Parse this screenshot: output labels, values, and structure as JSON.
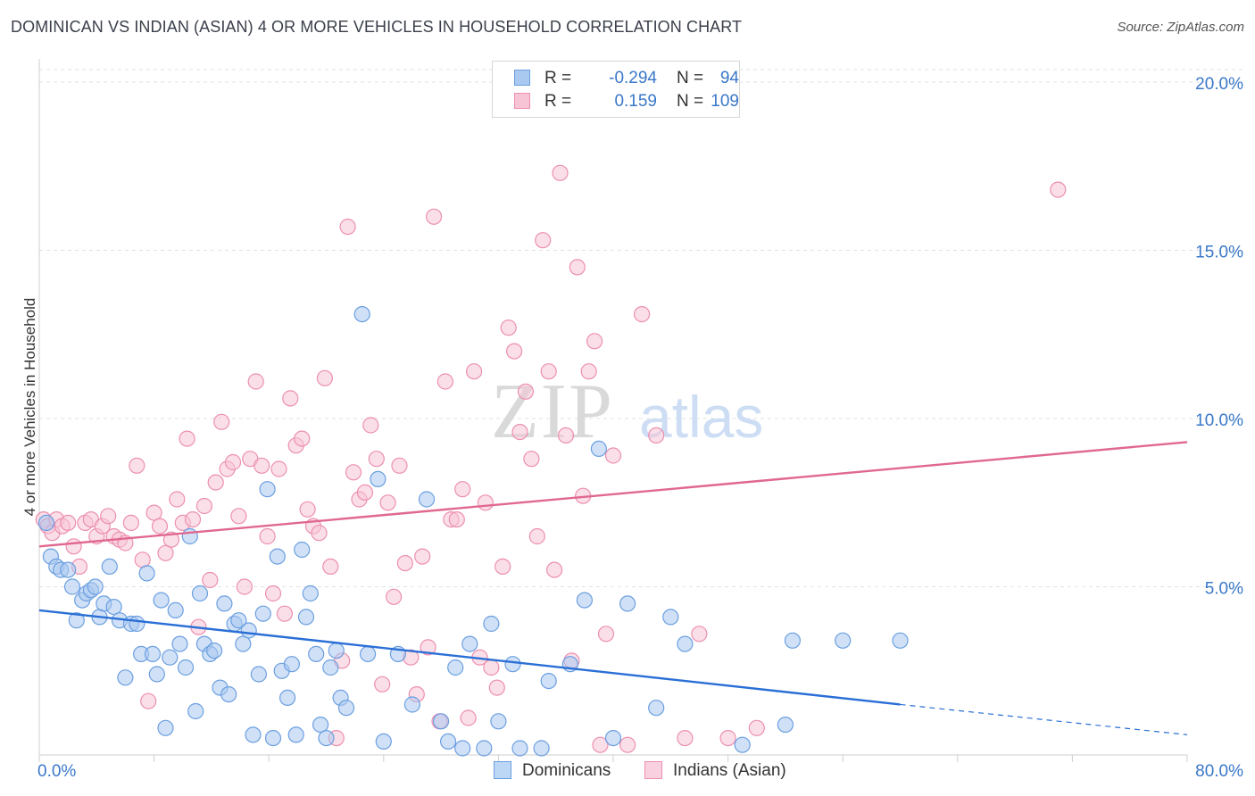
{
  "title": "DOMINICAN VS INDIAN (ASIAN) 4 OR MORE VEHICLES IN HOUSEHOLD CORRELATION CHART",
  "source": "Source: ZipAtlas.com",
  "watermark": {
    "zip": "ZIP",
    "atlas": "atlas"
  },
  "legend": {
    "rows": [
      {
        "r_label": "R =",
        "r_value": "-0.294",
        "n_label": "N =",
        "n_value": "94",
        "color": "#a9c9f0",
        "border": "#6b9fe0"
      },
      {
        "r_label": "R =",
        "r_value": "0.159",
        "n_label": "N =",
        "n_value": "109",
        "color": "#f7c4d6",
        "border": "#ec8fb0"
      }
    ]
  },
  "bottom_legend": [
    {
      "label": "Dominicans",
      "color": "#bcd6f5",
      "border": "#6b9fe0"
    },
    {
      "label": "Indians (Asian)",
      "color": "#f9d0df",
      "border": "#ec8fb0"
    }
  ],
  "chart_data": {
    "type": "scatter",
    "title": "DOMINICAN VS INDIAN (ASIAN) 4 OR MORE VEHICLES IN HOUSEHOLD CORRELATION CHART",
    "xlabel": "",
    "ylabel": "4 or more Vehicles in Household",
    "xlim": [
      0,
      80
    ],
    "ylim": [
      0,
      20
    ],
    "x_tick_labels": [
      "0.0%",
      "80.0%"
    ],
    "y_tick_labels": [
      "5.0%",
      "10.0%",
      "15.0%",
      "20.0%"
    ],
    "y_ticks": [
      5,
      10,
      15,
      20
    ],
    "grid": true,
    "legend_position": "top-center",
    "series": [
      {
        "name": "Dominicans",
        "color": "#6b9fe0",
        "fill": "#a9c9f0",
        "trend": {
          "x0": 0,
          "y0": 4.3,
          "x1": 60,
          "y1": 1.5,
          "dashed_to_x": 80,
          "dashed_to_y": 0.6,
          "color": "#2a6fd6"
        },
        "points": [
          [
            0.5,
            6.9
          ],
          [
            0.8,
            5.9
          ],
          [
            1.2,
            5.6
          ],
          [
            1.5,
            5.5
          ],
          [
            2.0,
            5.5
          ],
          [
            2.3,
            5.0
          ],
          [
            2.6,
            4.0
          ],
          [
            3.0,
            4.6
          ],
          [
            3.3,
            4.8
          ],
          [
            3.6,
            4.9
          ],
          [
            3.9,
            5.0
          ],
          [
            4.2,
            4.1
          ],
          [
            4.5,
            4.5
          ],
          [
            4.9,
            5.6
          ],
          [
            5.2,
            4.4
          ],
          [
            5.6,
            4.0
          ],
          [
            6.0,
            2.3
          ],
          [
            6.4,
            3.9
          ],
          [
            6.8,
            3.9
          ],
          [
            7.1,
            3.0
          ],
          [
            7.5,
            5.4
          ],
          [
            7.9,
            3.0
          ],
          [
            8.2,
            2.4
          ],
          [
            8.5,
            4.6
          ],
          [
            8.8,
            0.8
          ],
          [
            9.1,
            2.9
          ],
          [
            9.5,
            4.3
          ],
          [
            9.8,
            3.3
          ],
          [
            10.2,
            2.6
          ],
          [
            10.5,
            6.5
          ],
          [
            10.9,
            1.3
          ],
          [
            11.2,
            4.8
          ],
          [
            11.5,
            3.3
          ],
          [
            11.9,
            3.0
          ],
          [
            12.2,
            3.1
          ],
          [
            12.6,
            2.0
          ],
          [
            12.9,
            4.5
          ],
          [
            13.2,
            1.8
          ],
          [
            13.6,
            3.9
          ],
          [
            13.9,
            4.0
          ],
          [
            14.2,
            3.3
          ],
          [
            14.6,
            3.7
          ],
          [
            14.9,
            0.6
          ],
          [
            15.3,
            2.4
          ],
          [
            15.6,
            4.2
          ],
          [
            15.9,
            7.9
          ],
          [
            16.3,
            0.5
          ],
          [
            16.6,
            5.9
          ],
          [
            16.9,
            2.5
          ],
          [
            17.3,
            1.7
          ],
          [
            17.6,
            2.7
          ],
          [
            17.9,
            0.6
          ],
          [
            18.3,
            6.1
          ],
          [
            18.6,
            4.1
          ],
          [
            18.9,
            4.8
          ],
          [
            19.3,
            3.0
          ],
          [
            19.6,
            0.9
          ],
          [
            20.0,
            0.5
          ],
          [
            20.3,
            2.6
          ],
          [
            20.7,
            3.1
          ],
          [
            21.0,
            1.7
          ],
          [
            21.4,
            1.4
          ],
          [
            22.5,
            13.1
          ],
          [
            22.9,
            3.0
          ],
          [
            23.6,
            8.2
          ],
          [
            24.0,
            0.4
          ],
          [
            25.0,
            3.0
          ],
          [
            26.0,
            1.5
          ],
          [
            27.0,
            7.6
          ],
          [
            28.0,
            1.0
          ],
          [
            28.5,
            0.4
          ],
          [
            29.0,
            2.6
          ],
          [
            29.5,
            0.2
          ],
          [
            30.0,
            3.3
          ],
          [
            31.0,
            0.2
          ],
          [
            31.5,
            3.9
          ],
          [
            32.0,
            1.0
          ],
          [
            33.0,
            2.7
          ],
          [
            33.5,
            0.2
          ],
          [
            35.0,
            0.2
          ],
          [
            35.5,
            2.2
          ],
          [
            37.0,
            2.7
          ],
          [
            38.0,
            4.6
          ],
          [
            39.0,
            9.1
          ],
          [
            40.0,
            0.5
          ],
          [
            41.0,
            4.5
          ],
          [
            43.0,
            1.4
          ],
          [
            44.0,
            4.1
          ],
          [
            45.0,
            3.3
          ],
          [
            49.0,
            0.3
          ],
          [
            52.0,
            0.9
          ],
          [
            52.5,
            3.4
          ],
          [
            56.0,
            3.4
          ],
          [
            60.0,
            3.4
          ]
        ]
      },
      {
        "name": "Indians (Asian)",
        "color": "#ec8fb0",
        "fill": "#f7c4d6",
        "trend": {
          "x0": 0,
          "y0": 6.2,
          "x1": 80,
          "y1": 9.3,
          "color": "#e0688f"
        },
        "points": [
          [
            0.3,
            7.0
          ],
          [
            0.6,
            6.8
          ],
          [
            0.9,
            6.6
          ],
          [
            1.2,
            7.0
          ],
          [
            1.6,
            6.8
          ],
          [
            2.0,
            6.9
          ],
          [
            2.4,
            6.2
          ],
          [
            2.8,
            5.6
          ],
          [
            3.2,
            6.9
          ],
          [
            3.6,
            7.0
          ],
          [
            4.0,
            6.5
          ],
          [
            4.4,
            6.8
          ],
          [
            4.8,
            7.1
          ],
          [
            5.2,
            6.5
          ],
          [
            5.6,
            6.4
          ],
          [
            6.0,
            6.3
          ],
          [
            6.4,
            6.9
          ],
          [
            6.8,
            8.6
          ],
          [
            7.2,
            5.8
          ],
          [
            7.6,
            1.6
          ],
          [
            8.0,
            7.2
          ],
          [
            8.4,
            6.8
          ],
          [
            8.8,
            6.0
          ],
          [
            9.2,
            6.4
          ],
          [
            9.6,
            7.6
          ],
          [
            10.0,
            6.9
          ],
          [
            10.3,
            9.4
          ],
          [
            10.7,
            7.0
          ],
          [
            11.1,
            3.8
          ],
          [
            11.5,
            7.4
          ],
          [
            11.9,
            5.2
          ],
          [
            12.3,
            8.1
          ],
          [
            12.7,
            9.9
          ],
          [
            13.1,
            8.5
          ],
          [
            13.5,
            8.7
          ],
          [
            13.9,
            7.1
          ],
          [
            14.3,
            5.0
          ],
          [
            14.7,
            8.8
          ],
          [
            15.1,
            11.1
          ],
          [
            15.5,
            8.6
          ],
          [
            15.9,
            6.5
          ],
          [
            16.3,
            4.8
          ],
          [
            16.7,
            8.5
          ],
          [
            17.1,
            4.2
          ],
          [
            17.5,
            10.6
          ],
          [
            17.9,
            9.2
          ],
          [
            18.3,
            9.4
          ],
          [
            18.7,
            7.3
          ],
          [
            19.1,
            6.8
          ],
          [
            19.5,
            6.6
          ],
          [
            19.9,
            11.2
          ],
          [
            20.3,
            5.6
          ],
          [
            20.7,
            0.5
          ],
          [
            21.1,
            2.8
          ],
          [
            21.5,
            15.7
          ],
          [
            21.9,
            8.4
          ],
          [
            22.3,
            7.6
          ],
          [
            22.7,
            7.8
          ],
          [
            23.1,
            9.8
          ],
          [
            23.5,
            8.8
          ],
          [
            23.9,
            2.1
          ],
          [
            24.3,
            7.5
          ],
          [
            24.7,
            4.7
          ],
          [
            25.1,
            8.6
          ],
          [
            25.5,
            5.7
          ],
          [
            25.9,
            2.9
          ],
          [
            26.3,
            1.8
          ],
          [
            26.7,
            5.9
          ],
          [
            27.1,
            3.2
          ],
          [
            27.5,
            16.0
          ],
          [
            27.9,
            1.0
          ],
          [
            28.3,
            11.1
          ],
          [
            28.7,
            7.0
          ],
          [
            29.1,
            7.0
          ],
          [
            29.5,
            7.9
          ],
          [
            29.9,
            1.1
          ],
          [
            30.3,
            11.4
          ],
          [
            30.7,
            2.9
          ],
          [
            31.1,
            7.5
          ],
          [
            31.5,
            2.6
          ],
          [
            31.9,
            2.0
          ],
          [
            32.3,
            5.6
          ],
          [
            32.7,
            12.7
          ],
          [
            33.1,
            12.0
          ],
          [
            33.5,
            9.6
          ],
          [
            33.9,
            10.8
          ],
          [
            34.3,
            8.8
          ],
          [
            34.7,
            6.5
          ],
          [
            35.1,
            15.3
          ],
          [
            35.5,
            11.4
          ],
          [
            35.9,
            5.5
          ],
          [
            36.3,
            17.3
          ],
          [
            36.7,
            9.5
          ],
          [
            37.1,
            2.8
          ],
          [
            37.5,
            14.5
          ],
          [
            37.9,
            7.7
          ],
          [
            38.3,
            11.4
          ],
          [
            38.7,
            12.3
          ],
          [
            39.1,
            0.3
          ],
          [
            39.5,
            3.6
          ],
          [
            40.0,
            8.9
          ],
          [
            41.0,
            0.3
          ],
          [
            42.0,
            13.1
          ],
          [
            43.0,
            9.5
          ],
          [
            45.0,
            0.5
          ],
          [
            46.0,
            3.6
          ],
          [
            48.0,
            0.5
          ],
          [
            50.0,
            0.8
          ],
          [
            71.0,
            16.8
          ]
        ]
      }
    ]
  }
}
